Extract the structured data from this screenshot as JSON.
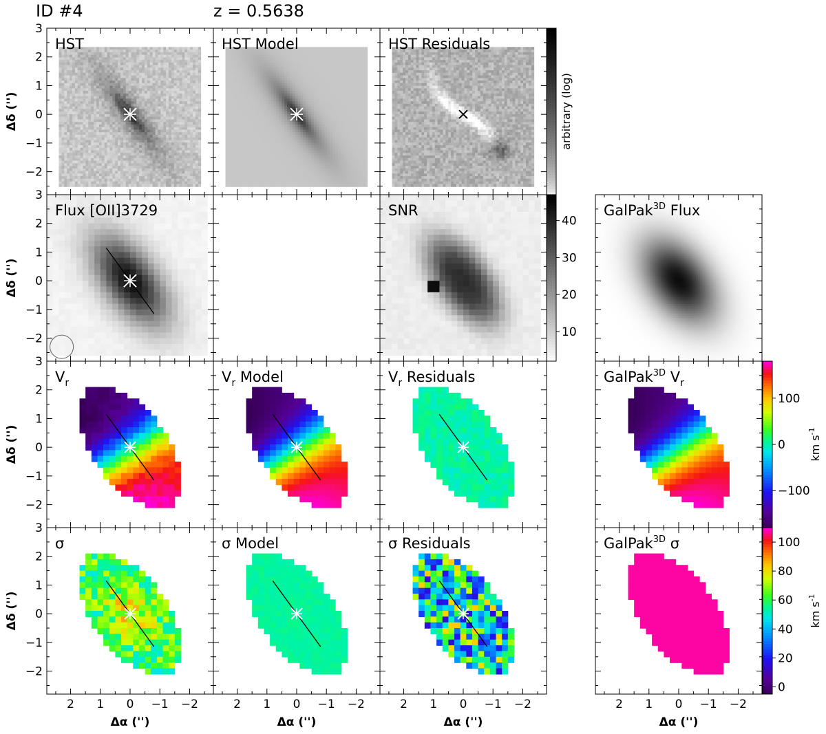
{
  "header": {
    "id_label": "ID #4",
    "redshift_label": "z = 0.5638"
  },
  "chart_data": {
    "type": "heatmap",
    "grid": {
      "rows": 4,
      "cols": 4
    },
    "axes": {
      "x_label": "Δα ('')",
      "y_label": "Δδ ('')",
      "x_ticks": [
        2,
        1,
        0,
        -1,
        -2
      ],
      "x_tick_labels": [
        "2",
        "1",
        "0",
        "−1",
        "−2"
      ],
      "y_ticks": [
        3,
        2,
        1,
        0,
        -1,
        -2
      ],
      "y_tick_labels": [
        "3",
        "2",
        "1",
        "0",
        "−1",
        "−2"
      ],
      "xlim": [
        2.8,
        -2.8
      ],
      "ylim": [
        -2.8,
        3.0
      ]
    },
    "galaxy": {
      "center": [
        0,
        0
      ],
      "position_angle_deg": 35,
      "major_axis_arcsec": 1.0
    },
    "panels": [
      {
        "row": 0,
        "col": 0,
        "title": "HST",
        "kind": "hst"
      },
      {
        "row": 0,
        "col": 1,
        "title": "HST Model",
        "kind": "hst_model"
      },
      {
        "row": 0,
        "col": 2,
        "title": "HST Residuals",
        "kind": "hst_resid"
      },
      {
        "row": 1,
        "col": 0,
        "title_parts": [
          "Flux ",
          "[",
          "OII",
          "]",
          "3729"
        ],
        "kind": "flux"
      },
      {
        "row": 1,
        "col": 1,
        "title": "",
        "kind": "empty"
      },
      {
        "row": 1,
        "col": 2,
        "title": "SNR",
        "kind": "snr"
      },
      {
        "row": 1,
        "col": 3,
        "title_parts": [
          "GalPak",
          "3D",
          " Flux"
        ],
        "kind": "galpak_flux"
      },
      {
        "row": 2,
        "col": 0,
        "title_parts": [
          "V",
          "r"
        ],
        "kind": "vr"
      },
      {
        "row": 2,
        "col": 1,
        "title_parts": [
          "V",
          "r",
          " Model"
        ],
        "kind": "vr_model"
      },
      {
        "row": 2,
        "col": 2,
        "title_parts": [
          "V",
          "r",
          " Residuals"
        ],
        "kind": "vr_resid"
      },
      {
        "row": 2,
        "col": 3,
        "title_parts": [
          "GalPak",
          "3D",
          " V",
          "r"
        ],
        "kind": "galpak_vr"
      },
      {
        "row": 3,
        "col": 0,
        "title": "σ",
        "kind": "sigma"
      },
      {
        "row": 3,
        "col": 1,
        "title": "σ Model",
        "kind": "sigma_model"
      },
      {
        "row": 3,
        "col": 2,
        "title": "σ Residuals",
        "kind": "sigma_resid"
      },
      {
        "row": 3,
        "col": 3,
        "title_parts": [
          "GalPak",
          "3D",
          " σ"
        ],
        "kind": "galpak_sigma"
      }
    ],
    "colorbars": [
      {
        "name": "hst",
        "label": "arbitrary (log)",
        "scale": "log",
        "ticks": []
      },
      {
        "name": "snr",
        "label": "",
        "range": [
          2,
          47
        ],
        "ticks": [
          10,
          20,
          30,
          40
        ]
      },
      {
        "name": "velocity",
        "label": "km s^-1",
        "range": [
          -180,
          180
        ],
        "ticks": [
          -100,
          0,
          100
        ],
        "tick_labels": [
          "−100",
          "0",
          "100"
        ]
      },
      {
        "name": "dispersion",
        "label": "km s^-1",
        "range": [
          -5,
          110
        ],
        "ticks": [
          0,
          20,
          40,
          60,
          80,
          100
        ]
      }
    ],
    "velocity": {
      "v_max_kms": 175,
      "sign": "negative toward north-east, positive toward south-west"
    },
    "dispersion": {
      "observed_center_kms": 82,
      "observed_outer_kms": 62,
      "model_kms": 55,
      "galpak_kms": 108
    }
  }
}
